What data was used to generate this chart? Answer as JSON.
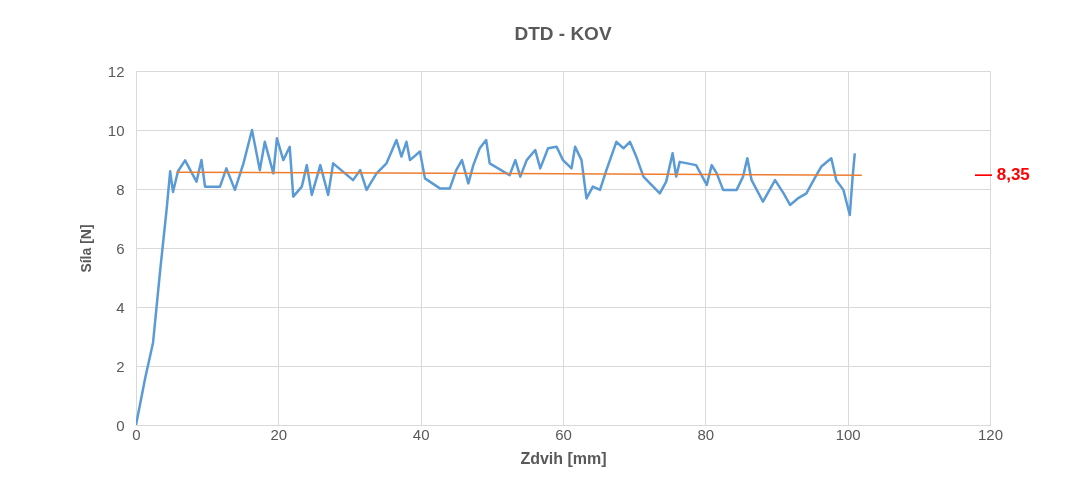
{
  "chart_data": {
    "type": "line",
    "title": "DTD - KOV",
    "xlabel": "Zdvih [mm]",
    "ylabel": "Síla [N]",
    "xlim": [
      0,
      120
    ],
    "xticks": [
      0,
      20,
      40,
      60,
      80,
      100,
      120
    ],
    "ylim": [
      0,
      12
    ],
    "yticks": [
      0,
      2,
      4,
      6,
      8,
      10,
      12
    ],
    "grid": true,
    "legend": false,
    "annotations": [
      "— 8,35"
    ],
    "series": [
      {
        "color": "#5b9bd5",
        "x": [
          0,
          1.3,
          2.4,
          3.4,
          4.3,
          4.8,
          5.2,
          5.9,
          6.9,
          8.5,
          9.2,
          9.7,
          11.8,
          12.7,
          13.9,
          15.1,
          16.3,
          17.4,
          18.1,
          19.3,
          19.8,
          20.7,
          21.6,
          22.1,
          23.3,
          24.0,
          24.7,
          25.9,
          27.0,
          27.7,
          30.5,
          31.5,
          32.4,
          33.8,
          35.2,
          36.6,
          37.3,
          38.0,
          38.5,
          39.9,
          40.6,
          42.7,
          44.1,
          45.0,
          45.8,
          46.7,
          47.4,
          48.3,
          49.2,
          49.7,
          52.5,
          53.3,
          54.0,
          54.9,
          56.1,
          56.8,
          57.9,
          59.1,
          60.0,
          61.2,
          61.7,
          62.6,
          63.3,
          64.2,
          65.2,
          66.1,
          67.5,
          68.5,
          69.4,
          70.3,
          71.3,
          73.6,
          74.5,
          75.4,
          75.9,
          76.4,
          78.7,
          80.2,
          80.9,
          81.6,
          82.5,
          84.4,
          85.3,
          85.9,
          86.5,
          88.1,
          89.8,
          91.0,
          91.9,
          93.0,
          94.2,
          95.6,
          96.3,
          97.7,
          98.4,
          99.4,
          100.3,
          100.7,
          101.0
        ],
        "values": [
          0,
          1.6,
          2.8,
          5.25,
          7.3,
          8.6,
          7.9,
          8.6,
          8.97,
          8.25,
          8.98,
          8.08,
          8.08,
          8.7,
          7.97,
          8.87,
          10.0,
          8.64,
          9.6,
          8.53,
          9.72,
          8.98,
          9.43,
          7.74,
          8.08,
          8.81,
          7.8,
          8.81,
          7.8,
          8.87,
          8.3,
          8.64,
          7.97,
          8.53,
          8.87,
          9.66,
          9.1,
          9.6,
          8.98,
          9.27,
          8.36,
          8.02,
          8.02,
          8.64,
          8.98,
          8.19,
          8.81,
          9.38,
          9.66,
          8.87,
          8.47,
          8.98,
          8.42,
          8.98,
          9.32,
          8.7,
          9.38,
          9.43,
          8.98,
          8.7,
          9.43,
          8.98,
          7.68,
          8.08,
          7.97,
          8.64,
          9.6,
          9.38,
          9.6,
          9.1,
          8.42,
          7.85,
          8.25,
          9.21,
          8.42,
          8.92,
          8.81,
          8.14,
          8.81,
          8.53,
          7.97,
          7.97,
          8.42,
          9.04,
          8.3,
          7.57,
          8.3,
          7.85,
          7.46,
          7.68,
          7.85,
          8.47,
          8.76,
          9.04,
          8.3,
          7.97,
          7.12,
          8.42,
          9.21
        ]
      },
      {
        "type": "line",
        "color": "#ed7d31",
        "x": [
          5.7,
          102
        ],
        "values": [
          8.57,
          8.47
        ]
      }
    ]
  }
}
